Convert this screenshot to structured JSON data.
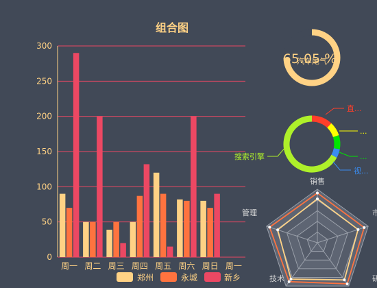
{
  "colors": {
    "background": "#414957",
    "axis_text": "#ffd285",
    "zhengzhou": "#ffd285",
    "yongcheng": "#ff733f",
    "xinxiang": "#ec4863",
    "gauge": "#ffd285",
    "grid": "#ec4863"
  },
  "chart_data": [
    {
      "type": "bar",
      "title": "组合图",
      "categories": [
        "周一",
        "周二",
        "周三",
        "周四",
        "周五",
        "周六",
        "周日",
        "周一"
      ],
      "ylim": [
        0,
        300
      ],
      "yticks": [
        0,
        50,
        100,
        150,
        200,
        250,
        300
      ],
      "legend_position": "bottom",
      "series": [
        {
          "name": "郑州",
          "values": [
            90,
            50,
            39,
            50,
            120,
            82,
            80,
            null
          ],
          "color": "#ffd285"
        },
        {
          "name": "永城",
          "values": [
            70,
            50,
            50,
            87,
            90,
            80,
            70,
            null
          ],
          "color": "#ff733f"
        },
        {
          "name": "新乡",
          "values": [
            290,
            200,
            20,
            132,
            15,
            200,
            90,
            null
          ],
          "color": "#ec4863"
        }
      ]
    },
    {
      "type": "gauge",
      "value_text": "65.05 %",
      "label": "汽车尾气",
      "value": 65.05
    },
    {
      "type": "pie",
      "labels": [
        "直...",
        "...",
        "...",
        "视...",
        "搜索引擎"
      ],
      "values": [
        12,
        8,
        8,
        5,
        67
      ],
      "colors": [
        "#ff3f2a",
        "#ffff00",
        "#00e500",
        "#3a8cf0",
        "#aef02a"
      ]
    },
    {
      "type": "radar",
      "indicators": [
        "销售",
        "市",
        "研",
        "技术",
        "管理"
      ],
      "series": [
        {
          "values": [
            0.82,
            0.8,
            0.86,
            0.84,
            0.78
          ],
          "color": "#ffd285"
        },
        {
          "values": [
            0.93,
            0.92,
            0.95,
            0.9,
            0.94
          ],
          "color": "#ff733f"
        }
      ]
    }
  ]
}
